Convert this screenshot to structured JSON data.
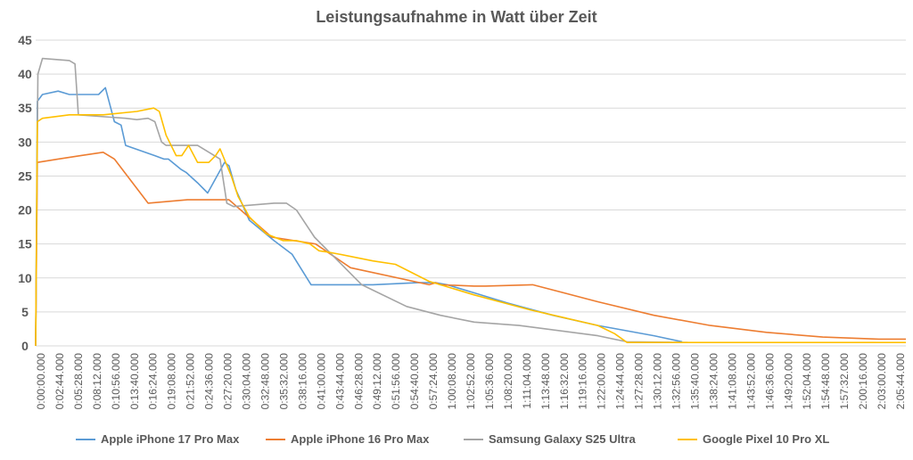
{
  "chart_data": {
    "type": "line",
    "title": "Leistungsaufnahme in Watt über Zeit",
    "xlabel": "",
    "ylabel": "",
    "ylim": [
      0,
      45
    ],
    "yticks": [
      0,
      5,
      10,
      15,
      20,
      25,
      30,
      35,
      40,
      45
    ],
    "xlim": [
      0,
      7740
    ],
    "x_unit": "seconds (h:mm:ss.000)",
    "xtick_labels": [
      "0:00:00.000",
      "0:02:44.000",
      "0:05:28.000",
      "0:08:12.000",
      "0:10:56.000",
      "0:13:40.000",
      "0:16:24.000",
      "0:19:08.000",
      "0:21:52.000",
      "0:24:36.000",
      "0:27:20.000",
      "0:30:04.000",
      "0:32:48.000",
      "0:35:32.000",
      "0:38:16.000",
      "0:41:00.000",
      "0:43:44.000",
      "0:46:28.000",
      "0:49:12.000",
      "0:51:56.000",
      "0:54:40.000",
      "0:57:24.000",
      "1:00:08.000",
      "1:02:52.000",
      "1:05:36.000",
      "1:08:20.000",
      "1:11:04.000",
      "1:13:48.000",
      "1:16:32.000",
      "1:19:16.000",
      "1:22:00.000",
      "1:24:44.000",
      "1:27:28.000",
      "1:30:12.000",
      "1:32:56.000",
      "1:35:40.000",
      "1:38:24.000",
      "1:41:08.000",
      "1:43:52.000",
      "1:46:36.000",
      "1:49:20.000",
      "1:52:04.000",
      "1:54:48.000",
      "1:57:32.000",
      "2:00:16.000",
      "2:03:00.000",
      "2:05:44.000"
    ],
    "grid": true,
    "legend_position": "bottom",
    "series": [
      {
        "name": "Apple iPhone 17 Pro Max",
        "color": "#5b9bd5",
        "x": [
          0,
          15,
          60,
          200,
          300,
          560,
          620,
          700,
          760,
          800,
          1060,
          1140,
          1180,
          1290,
          1340,
          1440,
          1530,
          1680,
          1720,
          1780,
          1900,
          2120,
          2280,
          2450,
          3000,
          3400,
          3560,
          3660,
          3760,
          3900,
          4200,
          4600,
          5000,
          5500,
          5750
        ],
        "y": [
          0,
          36,
          37,
          37.5,
          37,
          37,
          38,
          33,
          32.5,
          29.5,
          28,
          27.5,
          27.5,
          26,
          25.5,
          24,
          22.5,
          27,
          26.5,
          23,
          18.5,
          15.5,
          13.5,
          9,
          9,
          9.3,
          9.3,
          9,
          8.5,
          7.8,
          6.3,
          4.5,
          3,
          1.5,
          0.6
        ]
      },
      {
        "name": "Apple iPhone 16 Pro Max",
        "color": "#ed7d31",
        "x": [
          0,
          15,
          200,
          400,
          600,
          700,
          1000,
          1350,
          1720,
          2100,
          2300,
          2490,
          2800,
          3500,
          3560,
          3600,
          3900,
          4000,
          4420,
          5000,
          5500,
          6000,
          6500,
          7000,
          7500,
          7740
        ],
        "y": [
          0,
          27,
          27.5,
          28,
          28.5,
          27.5,
          21,
          21.5,
          21.5,
          16,
          15.5,
          15,
          11.5,
          9,
          9.3,
          9,
          8.8,
          8.8,
          9,
          6.5,
          4.5,
          3,
          2,
          1.3,
          1,
          1
        ]
      },
      {
        "name": "Samsung Galaxy S25 Ultra",
        "color": "#a5a5a5",
        "x": [
          0,
          20,
          60,
          300,
          350,
          380,
          800,
          900,
          1000,
          1060,
          1120,
          1160,
          1440,
          1640,
          1700,
          1760,
          2120,
          2230,
          2320,
          2480,
          2900,
          3300,
          3600,
          3900,
          4300,
          5000,
          5200,
          5260,
          5800
        ],
        "y": [
          0,
          40,
          42.3,
          42,
          41.5,
          34,
          33.5,
          33.3,
          33.5,
          33,
          30,
          29.5,
          29.5,
          27.5,
          21,
          20.5,
          21,
          21,
          20,
          16,
          9,
          5.8,
          4.5,
          3.5,
          3,
          1.5,
          0.8,
          0.6,
          0.5
        ]
      },
      {
        "name": "Google Pixel 10 Pro XL",
        "color": "#ffc000",
        "x": [
          0,
          15,
          60,
          300,
          600,
          900,
          1050,
          1100,
          1160,
          1250,
          1300,
          1360,
          1440,
          1540,
          1600,
          1640,
          1740,
          1800,
          1900,
          2050,
          2200,
          2320,
          2440,
          2520,
          2600,
          2700,
          3000,
          3200,
          3500,
          3900,
          4400,
          5000,
          5150,
          5260,
          5800,
          6500,
          7000,
          7740
        ],
        "y": [
          0,
          33,
          33.5,
          34,
          34,
          34.5,
          35,
          34.5,
          31,
          28,
          28,
          29.5,
          27,
          27,
          28,
          29,
          25,
          22,
          19,
          16.5,
          15.5,
          15.5,
          15,
          14,
          13.8,
          13.5,
          12.5,
          12,
          9.5,
          7.5,
          5.3,
          3,
          1.8,
          0.5,
          0.5,
          0.5,
          0.5,
          0.5
        ]
      }
    ]
  }
}
